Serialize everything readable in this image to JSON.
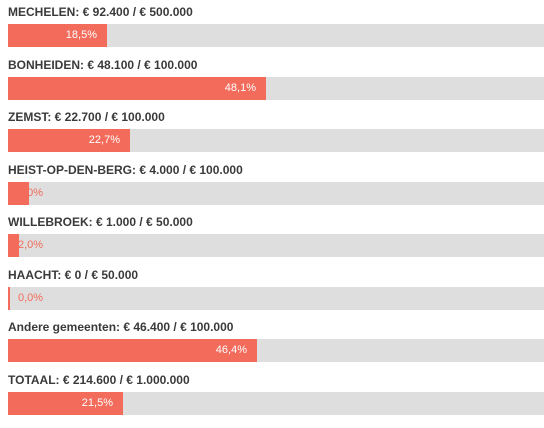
{
  "chart_data": {
    "type": "bar",
    "orientation": "horizontal",
    "colors": {
      "fill": "#f26b5b",
      "track": "#dedede",
      "label": "#3a3a3a"
    },
    "bars": [
      {
        "label": "MECHELEN: € 92.400 / € 500.000",
        "value": 92400,
        "max": 500000,
        "percent_label": "18,5%"
      },
      {
        "label": "BONHEIDEN: € 48.100 / € 100.000",
        "value": 48100,
        "max": 100000,
        "percent_label": "48,1%"
      },
      {
        "label": "ZEMST: € 22.700 / € 100.000",
        "value": 22700,
        "max": 100000,
        "percent_label": "22,7%"
      },
      {
        "label": "HEIST-OP-DEN-BERG: € 4.000 / € 100.000",
        "value": 4000,
        "max": 100000,
        "percent_label": "4,0%"
      },
      {
        "label": "WILLEBROEK: € 1.000 / € 50.000",
        "value": 1000,
        "max": 50000,
        "percent_label": "2,0%"
      },
      {
        "label": "HAACHT: € 0 / € 50.000",
        "value": 0,
        "max": 50000,
        "percent_label": "0,0%"
      },
      {
        "label": "Andere gemeenten: € 46.400 / € 100.000",
        "value": 46400,
        "max": 100000,
        "percent_label": "46,4%"
      },
      {
        "label": "TOTAAL: € 214.600 / € 1.000.000",
        "value": 214600,
        "max": 1000000,
        "percent_label": "21,5%"
      }
    ]
  }
}
